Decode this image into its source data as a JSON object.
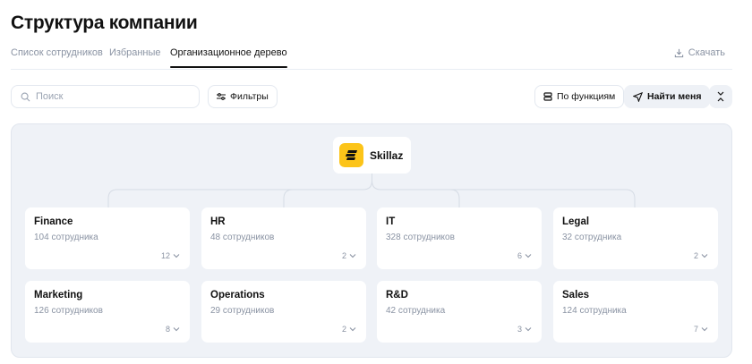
{
  "page_title": "Структура компании",
  "tabs": [
    {
      "label": "Список сотрудников"
    },
    {
      "label": "Избранные"
    },
    {
      "label": "Организационное дерево",
      "active": true
    }
  ],
  "download_label": "Скачать",
  "search": {
    "placeholder": "Поиск"
  },
  "filters_label": "Фильтры",
  "by_function_label": "По функциям",
  "find_me_label": "Найти меня",
  "root": {
    "name": "Skillaz",
    "logo_color": "#fcc419"
  },
  "departments": [
    {
      "name": "Finance",
      "count": "104 сотрудника",
      "children": "12"
    },
    {
      "name": "HR",
      "count": "48 сотрудников",
      "children": "2"
    },
    {
      "name": "IT",
      "count": "328 сотрудников",
      "children": "6"
    },
    {
      "name": "Legal",
      "count": "32 сотрудника",
      "children": "2"
    },
    {
      "name": "Marketing",
      "count": "126 сотрудников",
      "children": "8"
    },
    {
      "name": "Operations",
      "count": "29 сотрудников",
      "children": "2"
    },
    {
      "name": "R&D",
      "count": "42 сотрудника",
      "children": "3"
    },
    {
      "name": "Sales",
      "count": "124 сотрудника",
      "children": "7"
    }
  ]
}
